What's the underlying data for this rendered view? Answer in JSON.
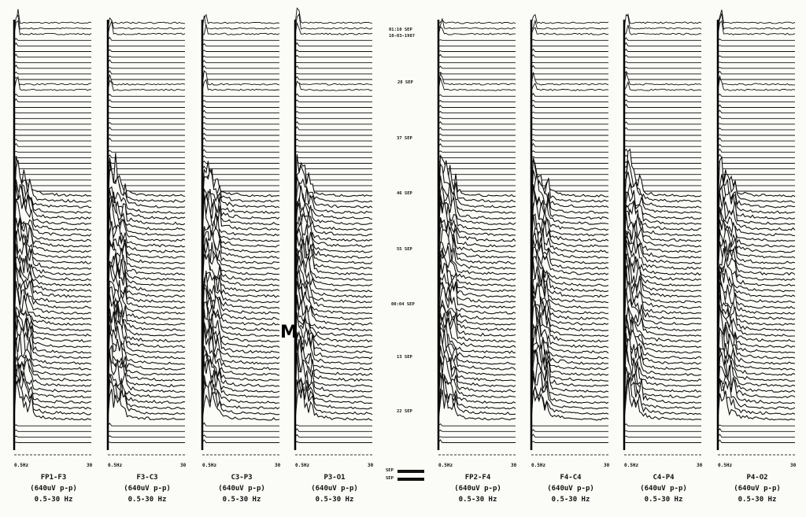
{
  "chart_data": {
    "type": "compressed-spectral-array",
    "channels": [
      {
        "name": "FP1-F3",
        "scale": "(640uV p-p)",
        "band": "0.5-30 Hz"
      },
      {
        "name": "F3-C3",
        "scale": "(640uV p-p)",
        "band": "0.5-30 Hz"
      },
      {
        "name": "C3-P3",
        "scale": "(640uV p-p)",
        "band": "0.5-30 Hz"
      },
      {
        "name": "P3-O1",
        "scale": "(640uV p-p)",
        "band": "0.5-30 Hz"
      },
      {
        "name": "FP2-F4",
        "scale": "(640uV p-p)",
        "band": "0.5-30 Hz"
      },
      {
        "name": "F4-C4",
        "scale": "(640uV p-p)",
        "band": "0.5-30 Hz"
      },
      {
        "name": "C4-P4",
        "scale": "(640uV p-p)",
        "band": "0.5-30 Hz"
      },
      {
        "name": "P4-O2",
        "scale": "(640uV p-p)",
        "band": "0.5-30 Hz"
      }
    ],
    "x_ticks": [
      "0.5Hz",
      "30"
    ],
    "xlim": [
      0.5,
      30
    ],
    "time_labels": [
      "01:10 SEP",
      "10-03-1987",
      "28 SEP",
      "37 SEP",
      "46 SEP",
      "55 SEP",
      "00:04 SEP",
      "13 SEP",
      "22 SEP"
    ],
    "annotation": "M",
    "legend_marks": [
      "SEP",
      "SEP"
    ],
    "high_activity_epochs": "lower ~60% of array (low-frequency peaks)"
  }
}
